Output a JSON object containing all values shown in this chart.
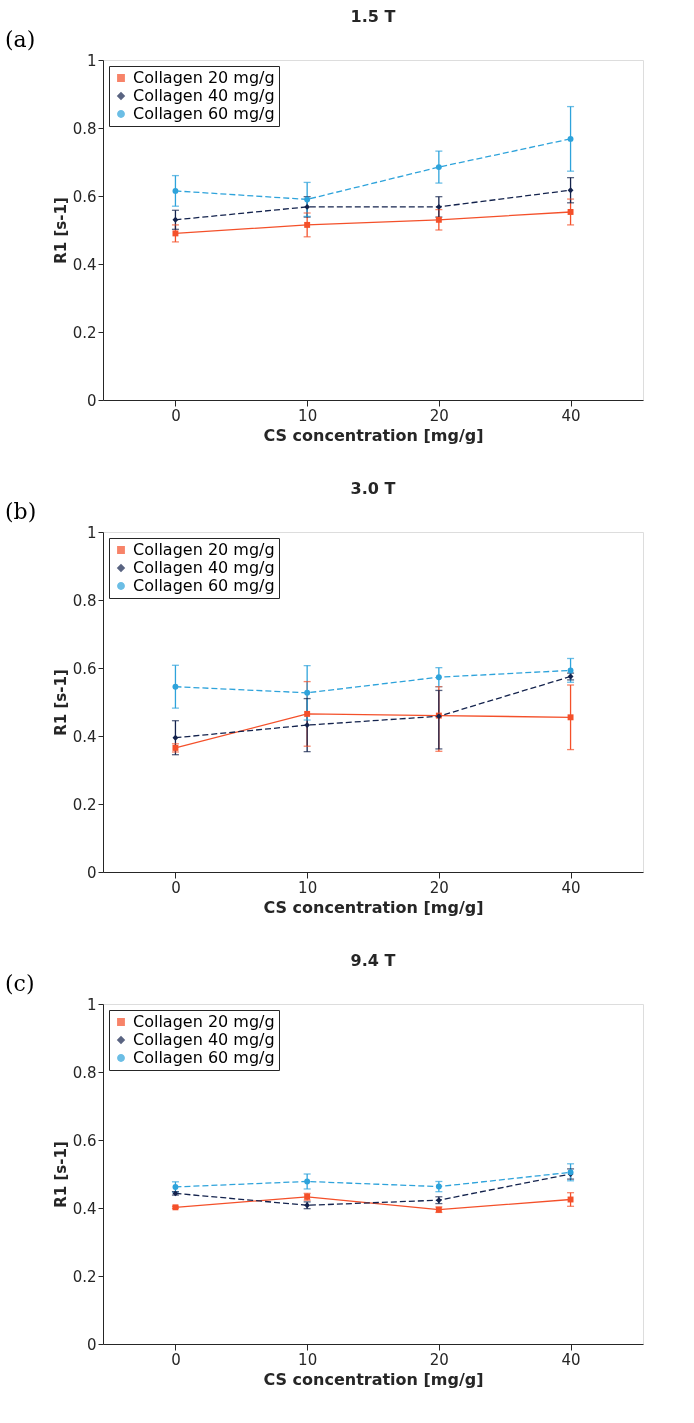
{
  "chart_data": [
    {
      "type": "line",
      "title": "1.5 T",
      "xlabel": "CS concentration [mg/g]",
      "ylabel": "R1 [s-1]",
      "annotations": [
        "(a)"
      ],
      "categories": [
        "0",
        "10",
        "20",
        "40"
      ],
      "ylim": [
        0,
        1
      ],
      "yticks": [
        0,
        0.2,
        0.4,
        0.6,
        0.8,
        1
      ],
      "grid": false,
      "legend": "top left",
      "series": [
        {
          "name": "Collagen 20 mg/g",
          "color": "#f4502a",
          "marker": "square",
          "line_style": "solid",
          "values": [
            0.49,
            0.515,
            0.53,
            0.553
          ],
          "errors": [
            0.025,
            0.035,
            0.03,
            0.038
          ]
        },
        {
          "name": "Collagen 40 mg/g",
          "color": "#14234d",
          "marker": "diamond",
          "line_style": "dashed",
          "values": [
            0.53,
            0.568,
            0.568,
            0.617
          ],
          "errors": [
            0.028,
            0.03,
            0.03,
            0.037
          ]
        },
        {
          "name": "Collagen 60 mg/g",
          "color": "#2ea3db",
          "marker": "circle",
          "line_style": "dashed",
          "values": [
            0.615,
            0.59,
            0.685,
            0.768
          ],
          "errors": [
            0.045,
            0.05,
            0.047,
            0.095
          ]
        }
      ]
    },
    {
      "type": "line",
      "title": "3.0 T",
      "xlabel": "CS concentration [mg/g]",
      "ylabel": "R1 [s-1]",
      "annotations": [
        "(b)"
      ],
      "categories": [
        "0",
        "10",
        "20",
        "40"
      ],
      "ylim": [
        0,
        1
      ],
      "yticks": [
        0,
        0.2,
        0.4,
        0.6,
        0.8,
        1
      ],
      "grid": false,
      "legend": "top left",
      "series": [
        {
          "name": "Collagen 20 mg/g",
          "color": "#f4502a",
          "marker": "square",
          "line_style": "solid",
          "values": [
            0.365,
            0.465,
            0.46,
            0.455
          ],
          "errors": [
            0.012,
            0.095,
            [
              0.355,
              0.545
            ],
            0.095
          ]
        },
        {
          "name": "Collagen 40 mg/g",
          "color": "#14234d",
          "marker": "diamond",
          "line_style": "dashed",
          "values": [
            0.395,
            0.432,
            0.458,
            0.575
          ],
          "errors": [
            0.05,
            0.078,
            [
              0.362,
              0.534
            ],
            0.01
          ]
        },
        {
          "name": "Collagen 60 mg/g",
          "color": "#2ea3db",
          "marker": "circle",
          "line_style": "dashed",
          "values": [
            0.545,
            0.527,
            0.573,
            0.593
          ],
          "errors": [
            0.063,
            0.08,
            0.028,
            0.035
          ]
        }
      ]
    },
    {
      "type": "line",
      "title": "9.4 T",
      "xlabel": "CS concentration [mg/g]",
      "ylabel": "R1 [s-1]",
      "annotations": [
        "(c)"
      ],
      "categories": [
        "0",
        "10",
        "20",
        "40"
      ],
      "ylim": [
        0,
        1
      ],
      "yticks": [
        0,
        0.2,
        0.4,
        0.6,
        0.8,
        1
      ],
      "grid": false,
      "legend": "top left",
      "series": [
        {
          "name": "Collagen 20 mg/g",
          "color": "#f4502a",
          "marker": "square",
          "line_style": "solid",
          "values": [
            0.402,
            0.433,
            0.395,
            0.425
          ],
          "errors": [
            0.003,
            0.01,
            0.008,
            0.02
          ]
        },
        {
          "name": "Collagen 40 mg/g",
          "color": "#14234d",
          "marker": "diamond",
          "line_style": "dashed",
          "values": [
            0.443,
            0.408,
            0.423,
            0.5
          ],
          "errors": [
            0.005,
            0.01,
            0.01,
            0.015
          ]
        },
        {
          "name": "Collagen 60 mg/g",
          "color": "#2ea3db",
          "marker": "circle",
          "line_style": "dashed",
          "values": [
            0.462,
            0.478,
            0.463,
            0.505
          ],
          "errors": [
            0.015,
            0.022,
            0.015,
            0.025
          ]
        }
      ]
    }
  ]
}
